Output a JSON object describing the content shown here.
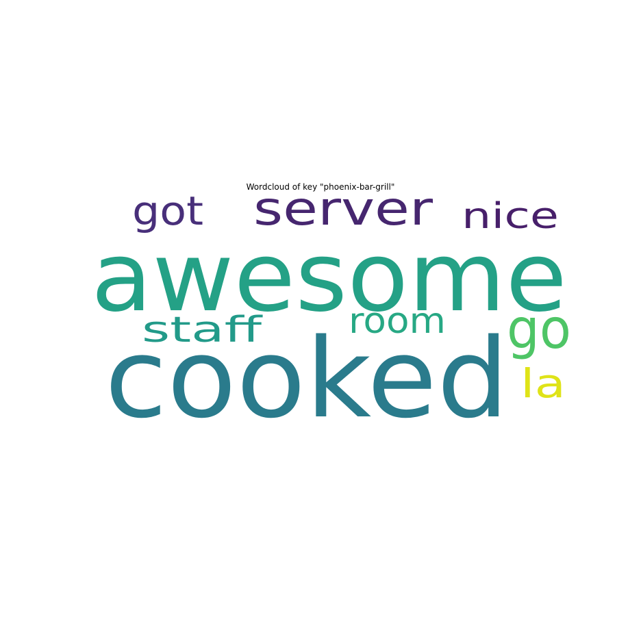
{
  "title": "Wordcloud of key \"phoenix-bar-grill\"",
  "words": [
    {
      "text": "awesome",
      "color": "#24a186"
    },
    {
      "text": "cooked",
      "color": "#2a7b8c"
    },
    {
      "text": "server",
      "color": "#46266f"
    },
    {
      "text": "got",
      "color": "#482f7a"
    },
    {
      "text": "nice",
      "color": "#471f6a"
    },
    {
      "text": "staff",
      "color": "#229a89"
    },
    {
      "text": "room",
      "color": "#27a884"
    },
    {
      "text": "go",
      "color": "#4ec566"
    },
    {
      "text": "la",
      "color": "#dfe318"
    }
  ]
}
